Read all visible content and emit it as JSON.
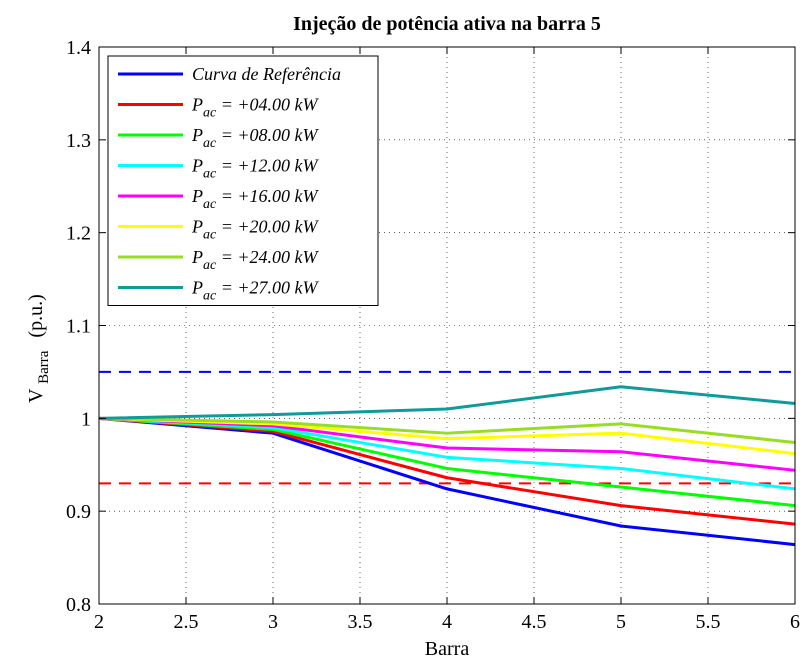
{
  "chart_data": {
    "type": "line",
    "title": "Injeção de potência ativa na barra 5",
    "xlabel": "Barra",
    "ylabel": {
      "main": "V",
      "subscript": "Barra",
      "unit": "(p.u.)"
    },
    "xlim": [
      2,
      6
    ],
    "ylim": [
      0.8,
      1.4
    ],
    "xticks": [
      2,
      2.5,
      3,
      3.5,
      4,
      4.5,
      5,
      5.5,
      6
    ],
    "xtick_labels": [
      "2",
      "2.5",
      "3",
      "3.5",
      "4",
      "4.5",
      "5",
      "5.5",
      "6"
    ],
    "yticks": [
      0.8,
      0.9,
      1.0,
      1.1,
      1.2,
      1.3,
      1.4
    ],
    "ytick_labels": [
      "0.8",
      "0.9",
      "1",
      "1.1",
      "1.2",
      "1.3",
      "1.4"
    ],
    "grid": true,
    "legend_position": "top-left",
    "x": [
      2,
      3,
      4,
      5,
      6
    ],
    "series": [
      {
        "name": "Curva de Referência",
        "color": "#0000ff",
        "values": [
          1.0,
          0.984,
          0.924,
          0.884,
          0.864
        ]
      },
      {
        "name_main": "P",
        "name_sub": "ac",
        "name_rest": " = +04.00 kW",
        "color": "#ff0000",
        "values": [
          1.0,
          0.986,
          0.936,
          0.906,
          0.886
        ]
      },
      {
        "name_main": "P",
        "name_sub": "ac",
        "name_rest": " = +08.00 kW",
        "color": "#00ff00",
        "values": [
          1.0,
          0.988,
          0.946,
          0.926,
          0.906
        ]
      },
      {
        "name_main": "P",
        "name_sub": "ac",
        "name_rest": " = +12.00 kW",
        "color": "#00ffff",
        "values": [
          1.0,
          0.99,
          0.958,
          0.946,
          0.924
        ]
      },
      {
        "name_main": "P",
        "name_sub": "ac",
        "name_rest": " = +16.00 kW",
        "color": "#ff00ff",
        "values": [
          1.0,
          0.992,
          0.968,
          0.964,
          0.944
        ]
      },
      {
        "name_main": "P",
        "name_sub": "ac",
        "name_rest": " = +20.00 kW",
        "color": "#ffff00",
        "values": [
          1.0,
          0.994,
          0.978,
          0.984,
          0.962
        ]
      },
      {
        "name_main": "P",
        "name_sub": "ac",
        "name_rest": " = +24.00 kW",
        "color": "#99dd22",
        "values": [
          1.0,
          0.996,
          0.984,
          0.994,
          0.974
        ]
      },
      {
        "name_main": "P",
        "name_sub": "ac",
        "name_rest": " = +27.00 kW",
        "color": "#109a9a",
        "values": [
          1.0,
          1.004,
          1.01,
          1.034,
          1.016
        ]
      }
    ],
    "reference_lines": [
      {
        "y": 1.05,
        "color": "#0000ff",
        "style": "dashed"
      },
      {
        "y": 0.93,
        "color": "#ff0000",
        "style": "dashed"
      }
    ]
  }
}
